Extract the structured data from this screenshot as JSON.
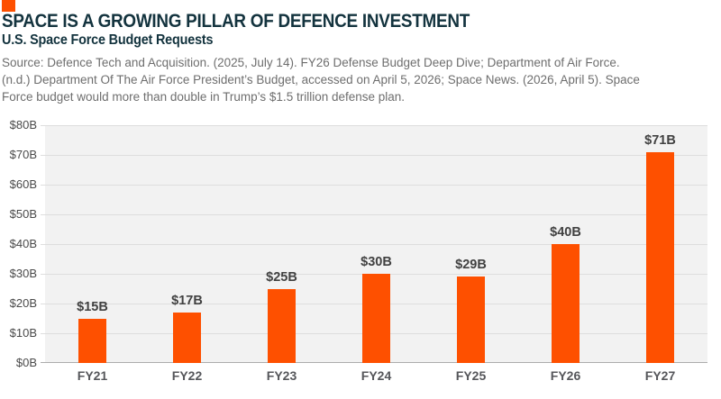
{
  "header": {
    "title": "SPACE IS A GROWING PILLAR OF DEFENCE INVESTMENT",
    "subtitle": "U.S. Space Force Budget Requests",
    "source_lines": [
      "Source: Defence Tech and Acquisition. (2025, July 14). FY26 Defense Budget Deep Dive; Department of Air Force.",
      "(n.d.) Department Of The Air Force President’s Budget, accessed on April 5, 2026; Space News. (2026, April 5). Space",
      "Force budget would more than double in Trump’s $1.5 trillion defense plan."
    ]
  },
  "chart_data": {
    "type": "bar",
    "title": "U.S. Space Force Budget Requests",
    "categories": [
      "FY21",
      "FY22",
      "FY23",
      "FY24",
      "FY25",
      "FY26",
      "FY27"
    ],
    "values": [
      15,
      17,
      25,
      30,
      29,
      40,
      71
    ],
    "bar_labels": [
      "$15B",
      "$17B",
      "$25B",
      "$30B",
      "$29B",
      "$40B",
      "$71B"
    ],
    "xlabel": "",
    "ylabel": "",
    "ylim": [
      0,
      80
    ],
    "ytick_step": 10,
    "ytick_labels": [
      "$0B",
      "$10B",
      "$20B",
      "$30B",
      "$40B",
      "$50B",
      "$60B",
      "$70B",
      "$80B"
    ],
    "grid": true,
    "legend": false
  },
  "colors": {
    "accent_orange": "#FE5000",
    "title_teal": "#13333E",
    "source_gray": "#6E6E6E",
    "plot_background": "#F2F2F2",
    "gridline": "#DEDEDE",
    "axis_line": "#ACACAC",
    "ytick_label": "#4A4A4A",
    "xtick_label": "#55565A",
    "bar_label": "#414141"
  }
}
